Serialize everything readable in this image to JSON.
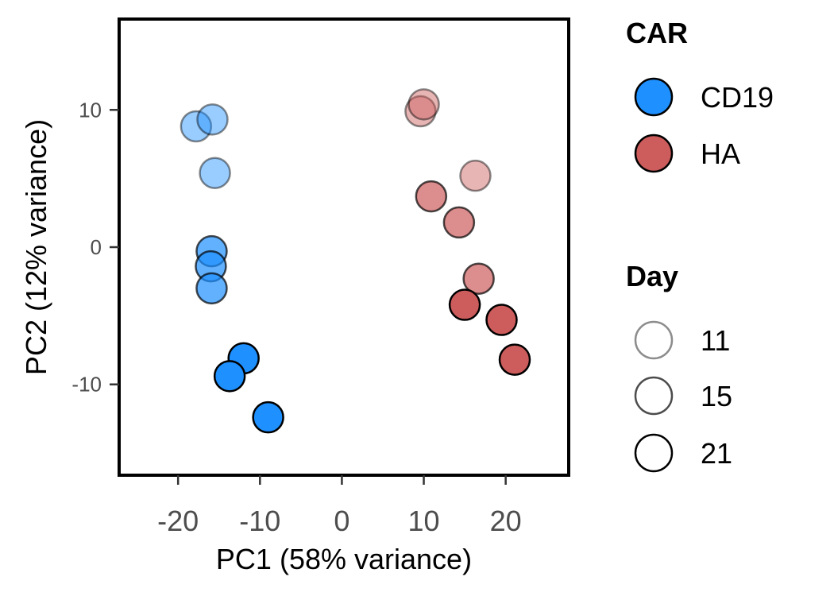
{
  "chart_data": {
    "type": "scatter",
    "title": "",
    "xlabel": "PC1 (58% variance)",
    "ylabel": "PC2 (12% variance)",
    "xlim": [
      -27,
      27.5
    ],
    "ylim": [
      -16.5,
      16.5
    ],
    "xticks": [
      {
        "value": -20,
        "label": "-20"
      },
      {
        "value": -10,
        "label": "-10"
      },
      {
        "value": 0,
        "label": "0"
      },
      {
        "value": 10,
        "label": "10"
      },
      {
        "value": 20,
        "label": "20"
      }
    ],
    "yticks": [
      {
        "value": 10,
        "label": "10"
      },
      {
        "value": 0,
        "label": "0"
      },
      {
        "value": -10,
        "label": "-10"
      }
    ],
    "grid": false,
    "legend_position": "right",
    "colors": {
      "CD19": "#1E90FF",
      "HA": "#CD5C5C"
    },
    "alpha_by_day": {
      "11": 0.45,
      "15": 0.7,
      "21": 1.0
    },
    "legends": [
      {
        "title": "CAR",
        "entries": [
          {
            "label": "CD19",
            "key": "CD19"
          },
          {
            "label": "HA",
            "key": "HA"
          }
        ]
      },
      {
        "title": "Day",
        "entries": [
          {
            "label": "11",
            "key": "11"
          },
          {
            "label": "15",
            "key": "15"
          },
          {
            "label": "21",
            "key": "21"
          }
        ]
      }
    ],
    "points": [
      {
        "car": "CD19",
        "day": "11",
        "x": -17.8,
        "y": 8.8
      },
      {
        "car": "CD19",
        "day": "11",
        "x": -15.8,
        "y": 9.3
      },
      {
        "car": "CD19",
        "day": "11",
        "x": -15.5,
        "y": 5.4
      },
      {
        "car": "CD19",
        "day": "15",
        "x": -15.9,
        "y": -0.3
      },
      {
        "car": "CD19",
        "day": "15",
        "x": -16.0,
        "y": -1.4
      },
      {
        "car": "CD19",
        "day": "15",
        "x": -15.9,
        "y": -3.0
      },
      {
        "car": "CD19",
        "day": "21",
        "x": -12.0,
        "y": -8.1
      },
      {
        "car": "CD19",
        "day": "21",
        "x": -13.7,
        "y": -9.4
      },
      {
        "car": "CD19",
        "day": "21",
        "x": -9.0,
        "y": -12.4
      },
      {
        "car": "HA",
        "day": "11",
        "x": 9.6,
        "y": 9.9
      },
      {
        "car": "HA",
        "day": "11",
        "x": 10.0,
        "y": 10.4
      },
      {
        "car": "HA",
        "day": "11",
        "x": 16.3,
        "y": 5.2
      },
      {
        "car": "HA",
        "day": "15",
        "x": 10.9,
        "y": 3.7
      },
      {
        "car": "HA",
        "day": "15",
        "x": 14.3,
        "y": 1.8
      },
      {
        "car": "HA",
        "day": "15",
        "x": 16.7,
        "y": -2.3
      },
      {
        "car": "HA",
        "day": "21",
        "x": 15.0,
        "y": -4.2
      },
      {
        "car": "HA",
        "day": "21",
        "x": 19.5,
        "y": -5.3
      },
      {
        "car": "HA",
        "day": "21",
        "x": 21.1,
        "y": -8.2
      }
    ]
  }
}
